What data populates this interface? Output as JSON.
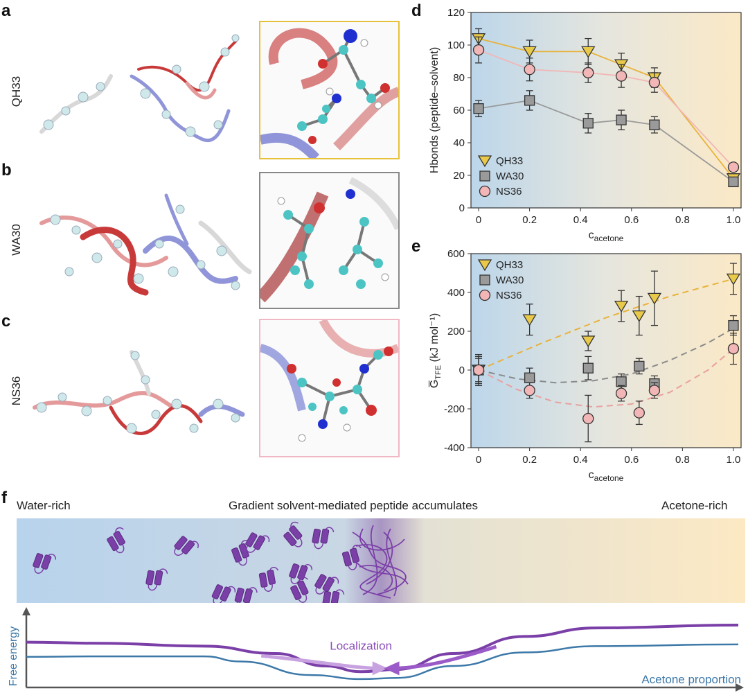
{
  "panels": {
    "a": {
      "letter": "a",
      "name": "QH33"
    },
    "b": {
      "letter": "b",
      "name": "WA30"
    },
    "c": {
      "letter": "c",
      "name": "NS36"
    },
    "d": {
      "letter": "d"
    },
    "e": {
      "letter": "e"
    },
    "f": {
      "letter": "f"
    }
  },
  "colors": {
    "QH33": "#e8c94a",
    "WA30": "#9a9a9a",
    "NS36": "#f2b6b6",
    "purple": "#7b3fa8",
    "blue_curve": "#3c78a8",
    "water": "#bcd6ea",
    "acetone": "#fbe9c6"
  },
  "chart_data": [
    {
      "id": "d",
      "type": "line",
      "xlabel": "c",
      "xlabel_sub": "acetone",
      "ylabel": "Hbonds (peptide–solvent)",
      "xlim": [
        -0.03,
        1.03
      ],
      "ylim": [
        0,
        120
      ],
      "xticks": [
        "0",
        "0.2",
        "0.4",
        "0.6",
        "0.8",
        "1.0"
      ],
      "xtick_values": [
        0,
        0.2,
        0.4,
        0.6,
        0.8,
        1.0
      ],
      "yticks": [
        "0",
        "20",
        "40",
        "60",
        "80",
        "100",
        "120"
      ],
      "ytick_values": [
        0,
        20,
        40,
        60,
        80,
        100,
        120
      ],
      "legend_position": "bottom-left",
      "series": [
        {
          "name": "QH33",
          "marker": "triangle",
          "x": [
            0,
            0.2,
            0.43,
            0.56,
            0.69,
            1.0
          ],
          "y": [
            104,
            96,
            96,
            88,
            80,
            18
          ],
          "err": [
            6,
            7,
            8,
            7,
            6,
            3
          ]
        },
        {
          "name": "WA30",
          "marker": "square",
          "x": [
            0,
            0.2,
            0.43,
            0.56,
            0.69,
            1.0
          ],
          "y": [
            61,
            66,
            52,
            54,
            51,
            16
          ],
          "err": [
            5,
            6,
            6,
            6,
            5,
            2
          ]
        },
        {
          "name": "NS36",
          "marker": "circle",
          "x": [
            0,
            0.2,
            0.43,
            0.56,
            0.69,
            1.0
          ],
          "y": [
            97,
            85,
            83,
            81,
            77,
            25
          ],
          "err": [
            8,
            7,
            6,
            7,
            6,
            2
          ]
        }
      ]
    },
    {
      "id": "e",
      "type": "scatter",
      "xlabel": "c",
      "xlabel_sub": "acetone",
      "ylabel": "G̅",
      "ylabel_sub": "TFE",
      "ylabel_unit": " (kJ mol⁻¹)",
      "xlim": [
        -0.03,
        1.03
      ],
      "ylim": [
        -400,
        600
      ],
      "xticks": [
        "0",
        "0.2",
        "0.4",
        "0.6",
        "0.8",
        "1.0"
      ],
      "xtick_values": [
        0,
        0.2,
        0.4,
        0.6,
        0.8,
        1.0
      ],
      "yticks": [
        "-400",
        "-200",
        "0",
        "200",
        "400",
        "600"
      ],
      "ytick_values": [
        -400,
        -200,
        0,
        200,
        400,
        600
      ],
      "legend_position": "top-left",
      "series": [
        {
          "name": "QH33",
          "marker": "triangle",
          "x": [
            0,
            0.2,
            0.43,
            0.56,
            0.63,
            0.69,
            1.0
          ],
          "y": [
            0,
            260,
            150,
            330,
            280,
            370,
            470
          ],
          "err": [
            60,
            80,
            50,
            80,
            100,
            140,
            80
          ],
          "fit": [
            [
              0,
              0
            ],
            [
              0.25,
              140
            ],
            [
              0.5,
              270
            ],
            [
              0.75,
              380
            ],
            [
              1.0,
              470
            ]
          ]
        },
        {
          "name": "WA30",
          "marker": "square",
          "x": [
            0,
            0.2,
            0.43,
            0.56,
            0.63,
            0.69,
            1.0
          ],
          "y": [
            0,
            -40,
            10,
            -60,
            20,
            -70,
            230
          ],
          "err": [
            80,
            50,
            60,
            40,
            40,
            40,
            50
          ],
          "fit": [
            [
              0,
              0
            ],
            [
              0.15,
              -45
            ],
            [
              0.3,
              -65
            ],
            [
              0.45,
              -55
            ],
            [
              0.6,
              -20
            ],
            [
              0.75,
              50
            ],
            [
              0.9,
              140
            ],
            [
              1.0,
              215
            ]
          ]
        },
        {
          "name": "NS36",
          "marker": "circle",
          "x": [
            0,
            0.2,
            0.43,
            0.56,
            0.63,
            0.69,
            1.0
          ],
          "y": [
            0,
            -105,
            -250,
            -120,
            -220,
            -105,
            110
          ],
          "err": [
            70,
            40,
            120,
            40,
            60,
            40,
            80
          ],
          "fit": [
            [
              0,
              0
            ],
            [
              0.15,
              -100
            ],
            [
              0.3,
              -165
            ],
            [
              0.45,
              -190
            ],
            [
              0.6,
              -175
            ],
            [
              0.75,
              -115
            ],
            [
              0.9,
              0
            ],
            [
              1.0,
              110
            ]
          ]
        }
      ]
    },
    {
      "id": "f",
      "type": "line",
      "xlabel": "Acetone proportion",
      "ylabel": "Free energy",
      "annotation": "Localization",
      "series": [
        {
          "name": "peptide (purple)",
          "x": [
            0,
            0.1,
            0.25,
            0.35,
            0.42,
            0.47,
            0.52,
            0.6,
            0.7,
            0.8,
            1.0
          ],
          "y": [
            0.7,
            0.68,
            0.63,
            0.5,
            0.28,
            0.18,
            0.22,
            0.5,
            0.8,
            0.95,
            1.0
          ]
        },
        {
          "name": "blue",
          "x": [
            0,
            0.1,
            0.25,
            0.3,
            0.4,
            0.47,
            0.52,
            0.6,
            0.7,
            0.8,
            1.0
          ],
          "y": [
            0.44,
            0.45,
            0.45,
            0.36,
            0.12,
            0.05,
            0.07,
            0.28,
            0.52,
            0.63,
            0.66
          ]
        }
      ]
    }
  ],
  "panel_f": {
    "left_label": "Water-rich",
    "center_label": "Gradient solvent-mediated peptide accumulates",
    "right_label": "Acetone-rich"
  }
}
